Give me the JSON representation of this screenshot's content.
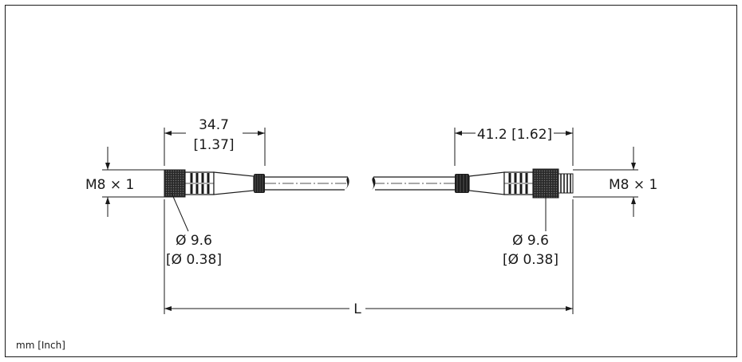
{
  "diagram": {
    "left_length": "34.7",
    "left_length_inch": "[1.37]",
    "right_length": "41.2 [1.62]",
    "left_thread": "M8 × 1",
    "right_thread": "M8 × 1",
    "left_diameter": "Ø 9.6",
    "left_diameter_inch": "[Ø 0.38]",
    "right_diameter": "Ø 9.6",
    "right_diameter_inch": "[Ø 0.38]",
    "total_length": "L",
    "units_note": "mm [Inch]"
  },
  "colors": {
    "ink": "#1a1a1a",
    "background": "#ffffff"
  }
}
